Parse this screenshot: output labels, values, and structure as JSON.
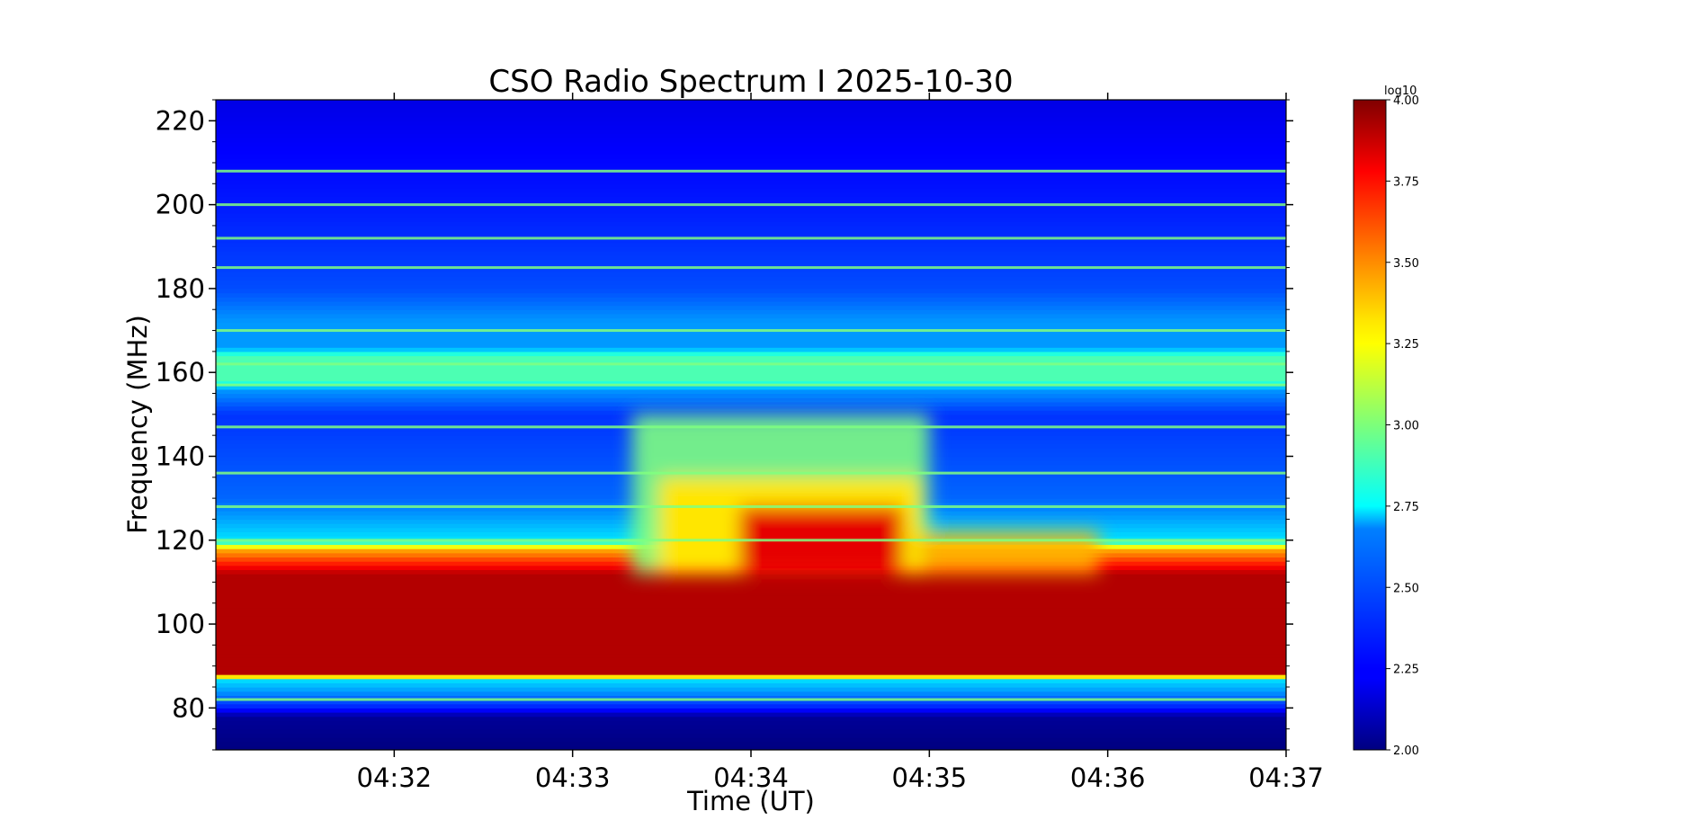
{
  "chart_data": {
    "type": "heatmap",
    "title": "CSO Radio Spectrum I 2025-10-30",
    "xlabel": "Time (UT)",
    "ylabel": "Frequency (MHz)",
    "x_range": [
      "04:31:00",
      "04:37:00"
    ],
    "x_ticks": [
      "04:32",
      "04:33",
      "04:34",
      "04:35",
      "04:36",
      "04:37"
    ],
    "y_range": [
      70,
      225
    ],
    "y_ticks": [
      80,
      100,
      120,
      140,
      160,
      180,
      200,
      220
    ],
    "colorbar": {
      "label": "log10",
      "range": [
        2.0,
        4.0
      ],
      "ticks": [
        "2.00",
        "2.25",
        "2.50",
        "2.75",
        "3.00",
        "3.25",
        "3.50",
        "3.75",
        "4.00"
      ],
      "colormap": "jet"
    },
    "features": {
      "background_level_log10": 2.3,
      "strong_band_mhz": [
        88,
        112
      ],
      "strong_band_level_log10": 3.9,
      "moderate_band_mhz": [
        112,
        118
      ],
      "moderate_band_level_log10": 3.4,
      "rfi_lines_mhz": [
        208,
        200,
        192,
        185,
        170,
        162,
        157,
        147,
        136,
        128,
        120,
        82
      ],
      "burst_time_range": [
        "04:33:20",
        "04:35:00"
      ],
      "burst_freq_mhz": [
        112,
        150
      ],
      "burst_peak_level_log10": 3.8
    }
  }
}
